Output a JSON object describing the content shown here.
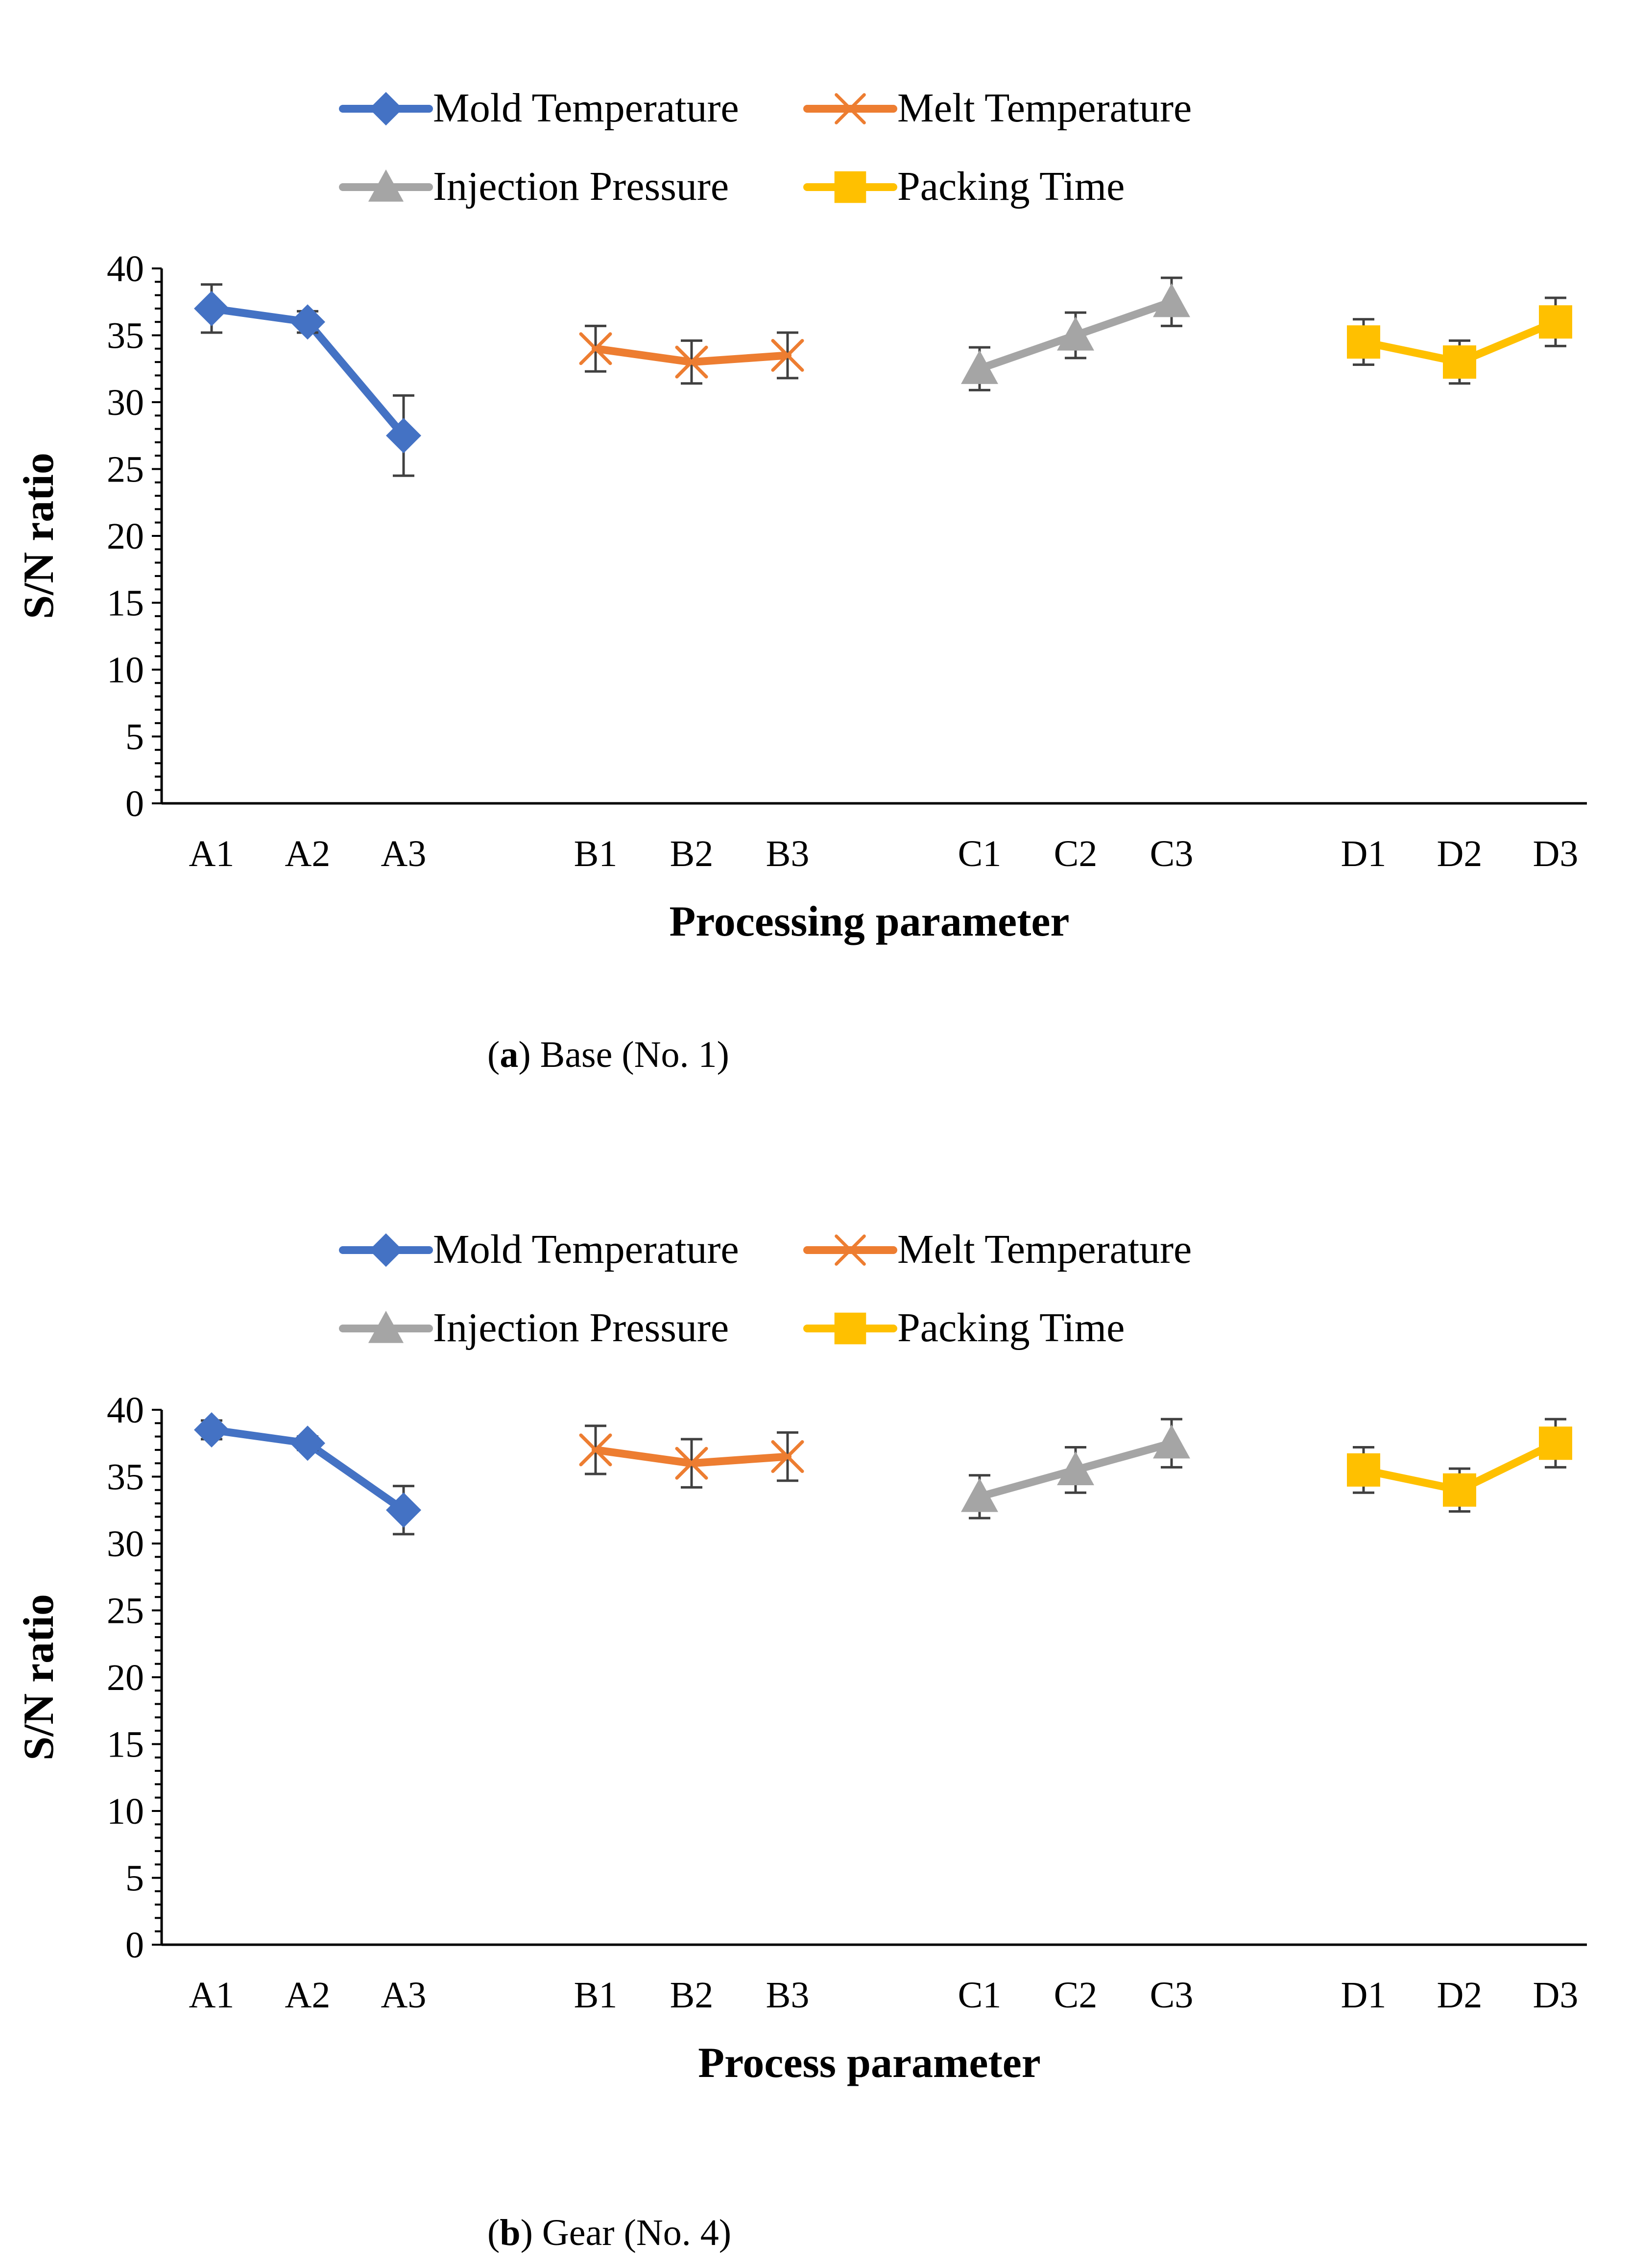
{
  "colors": {
    "mold": "#4472C4",
    "melt": "#ED7D31",
    "injection": "#A5A5A5",
    "packing": "#FFC000",
    "axis": "#000000",
    "errorbar": "#404040"
  },
  "chart_data": [
    {
      "type": "line",
      "title": "",
      "caption_letter": "a",
      "caption_text": "Base (No. 1)",
      "xlabel": "Processing parameter",
      "ylabel": "S/N  ratio",
      "ylim": [
        0,
        40
      ],
      "yticks": [
        "0",
        "5",
        "10",
        "15",
        "20",
        "25",
        "30",
        "35",
        "40"
      ],
      "legend_position": "top-center",
      "series": [
        {
          "name": "Mold Temperature",
          "key": "mold",
          "marker": "diamond",
          "categories": [
            "A1",
            "A2",
            "A3"
          ],
          "values": [
            37.0,
            36.0,
            27.5
          ],
          "errors": [
            1.8,
            0.8,
            3.0
          ]
        },
        {
          "name": "Melt Temperature",
          "key": "melt",
          "marker": "x",
          "categories": [
            "B1",
            "B2",
            "B3"
          ],
          "values": [
            34.0,
            33.0,
            33.5
          ],
          "errors": [
            1.7,
            1.6,
            1.7
          ]
        },
        {
          "name": "Injection Pressure",
          "key": "injection",
          "marker": "triangle",
          "categories": [
            "C1",
            "C2",
            "C3"
          ],
          "values": [
            32.5,
            35.0,
            37.5
          ],
          "errors": [
            1.6,
            1.7,
            1.8
          ]
        },
        {
          "name": "Packing Time",
          "key": "packing",
          "marker": "square",
          "categories": [
            "D1",
            "D2",
            "D3"
          ],
          "values": [
            34.5,
            33.0,
            36.0
          ],
          "errors": [
            1.7,
            1.6,
            1.8
          ]
        }
      ]
    },
    {
      "type": "line",
      "title": "",
      "caption_letter": "b",
      "caption_text": "Gear (No. 4)",
      "xlabel": "Process parameter",
      "ylabel": "S/N ratio",
      "ylim": [
        0,
        40
      ],
      "yticks": [
        "0",
        "5",
        "10",
        "15",
        "20",
        "25",
        "30",
        "35",
        "40"
      ],
      "legend_position": "top-center",
      "series": [
        {
          "name": "Mold Temperature",
          "key": "mold",
          "marker": "diamond",
          "categories": [
            "A1",
            "A2",
            "A3"
          ],
          "values": [
            38.5,
            37.5,
            32.5
          ],
          "errors": [
            0.7,
            0.5,
            1.8
          ]
        },
        {
          "name": "Melt Temperature",
          "key": "melt",
          "marker": "x",
          "categories": [
            "B1",
            "B2",
            "B3"
          ],
          "values": [
            37.0,
            36.0,
            36.5
          ],
          "errors": [
            1.8,
            1.8,
            1.8
          ]
        },
        {
          "name": "Injection Pressure",
          "key": "injection",
          "marker": "triangle",
          "categories": [
            "C1",
            "C2",
            "C3"
          ],
          "values": [
            33.5,
            35.5,
            37.5
          ],
          "errors": [
            1.6,
            1.7,
            1.8
          ]
        },
        {
          "name": "Packing Time",
          "key": "packing",
          "marker": "square",
          "categories": [
            "D1",
            "D2",
            "D3"
          ],
          "values": [
            35.5,
            34.0,
            37.5
          ],
          "errors": [
            1.7,
            1.6,
            1.8
          ]
        }
      ]
    }
  ]
}
